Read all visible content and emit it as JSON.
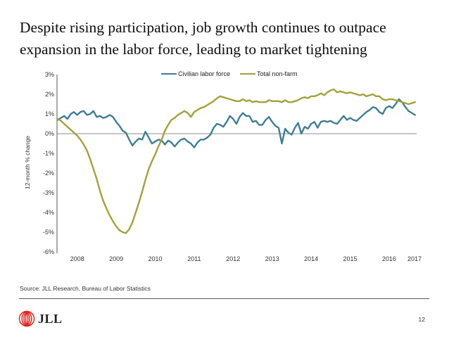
{
  "title": {
    "line1": "Despite rising participation, job growth continues to outpace",
    "line2": "expansion in the labor force, leading to market tightening"
  },
  "chart_data": {
    "type": "line",
    "ylabel": "12-month % change",
    "x_start_year": 2008,
    "x_start_month": 1,
    "x_tick_labels": [
      "2008",
      "2009",
      "2010",
      "2011",
      "2012",
      "2013",
      "2014",
      "2015",
      "2016",
      "2017"
    ],
    "y_ticks": [
      {
        "value": 3,
        "label": "3%"
      },
      {
        "value": 2,
        "label": "2%"
      },
      {
        "value": 1,
        "label": "1%"
      },
      {
        "value": 0,
        "label": "0%"
      },
      {
        "value": -1,
        "label": "-1%"
      },
      {
        "value": -2,
        "label": "-2%"
      },
      {
        "value": -3,
        "label": "-3%"
      },
      {
        "value": -4,
        "label": "-4%"
      },
      {
        "value": -5,
        "label": "-5%"
      },
      {
        "value": -6,
        "label": "-6%"
      }
    ],
    "ylim": [
      -6,
      3
    ],
    "grid": "zero-line-only",
    "legend_position": "top-center",
    "series": [
      {
        "name": "Civilian labor force",
        "color": "#3e7e94",
        "values": [
          0.7,
          0.8,
          0.9,
          0.75,
          1.0,
          1.1,
          0.95,
          1.1,
          1.15,
          0.95,
          1.0,
          1.15,
          0.85,
          0.9,
          0.8,
          0.85,
          0.95,
          0.85,
          0.6,
          0.4,
          0.15,
          0.05,
          -0.3,
          -0.6,
          -0.4,
          -0.25,
          -0.3,
          0.1,
          -0.2,
          -0.5,
          -0.4,
          -0.3,
          -0.35,
          -0.55,
          -0.35,
          -0.45,
          -0.65,
          -0.45,
          -0.3,
          -0.25,
          -0.4,
          -0.5,
          -0.7,
          -0.45,
          -0.3,
          -0.3,
          -0.2,
          -0.05,
          0.3,
          0.5,
          0.45,
          0.35,
          0.6,
          0.9,
          0.75,
          0.5,
          0.85,
          1.05,
          0.9,
          0.9,
          0.6,
          0.65,
          0.45,
          0.45,
          0.7,
          0.85,
          0.6,
          0.4,
          0.3,
          -0.5,
          0.25,
          0.05,
          -0.05,
          0.3,
          0.55,
          0.0,
          0.35,
          0.25,
          0.5,
          0.6,
          0.3,
          0.6,
          0.65,
          0.6,
          0.65,
          0.55,
          0.5,
          0.7,
          0.9,
          0.7,
          0.8,
          0.7,
          0.65,
          0.8,
          0.95,
          1.1,
          1.2,
          1.35,
          1.3,
          1.1,
          1.0,
          1.3,
          1.4,
          1.3,
          1.5,
          1.75,
          1.6,
          1.35,
          1.15,
          1.05,
          0.95
        ]
      },
      {
        "name": "Total non-farm",
        "color": "#a4a13a",
        "values": [
          0.75,
          0.65,
          0.5,
          0.35,
          0.2,
          0.05,
          -0.1,
          -0.3,
          -0.55,
          -0.85,
          -1.3,
          -1.8,
          -2.3,
          -2.9,
          -3.4,
          -3.8,
          -4.15,
          -4.45,
          -4.7,
          -4.9,
          -5.0,
          -5.05,
          -4.85,
          -4.5,
          -4.0,
          -3.5,
          -2.95,
          -2.35,
          -1.8,
          -1.4,
          -1.05,
          -0.65,
          -0.3,
          0.15,
          0.45,
          0.7,
          0.8,
          0.95,
          1.05,
          1.15,
          1.05,
          0.85,
          1.1,
          1.2,
          1.3,
          1.35,
          1.45,
          1.55,
          1.65,
          1.8,
          1.9,
          1.85,
          1.8,
          1.75,
          1.7,
          1.65,
          1.65,
          1.75,
          1.65,
          1.7,
          1.6,
          1.65,
          1.6,
          1.6,
          1.6,
          1.7,
          1.65,
          1.65,
          1.65,
          1.6,
          1.7,
          1.6,
          1.6,
          1.65,
          1.7,
          1.8,
          1.85,
          1.8,
          1.9,
          1.9,
          1.95,
          2.05,
          1.95,
          2.1,
          2.2,
          2.25,
          2.1,
          2.15,
          2.1,
          2.05,
          2.1,
          2.05,
          2.0,
          1.95,
          2.0,
          1.9,
          1.95,
          2.0,
          1.9,
          1.9,
          1.75,
          1.7,
          1.75,
          1.75,
          1.7,
          1.65,
          1.6,
          1.55,
          1.5,
          1.55,
          1.6
        ]
      }
    ]
  },
  "footer": {
    "source": "Source: JLL Research, Bureau of Labor Statistics",
    "logo_text": "JLL",
    "page_number": "12"
  },
  "colors": {
    "axis": "#595959",
    "zero_line": "#8c8c8c",
    "tick_text": "#333333",
    "logo_red": "#e1251b",
    "divider": "#595959"
  }
}
